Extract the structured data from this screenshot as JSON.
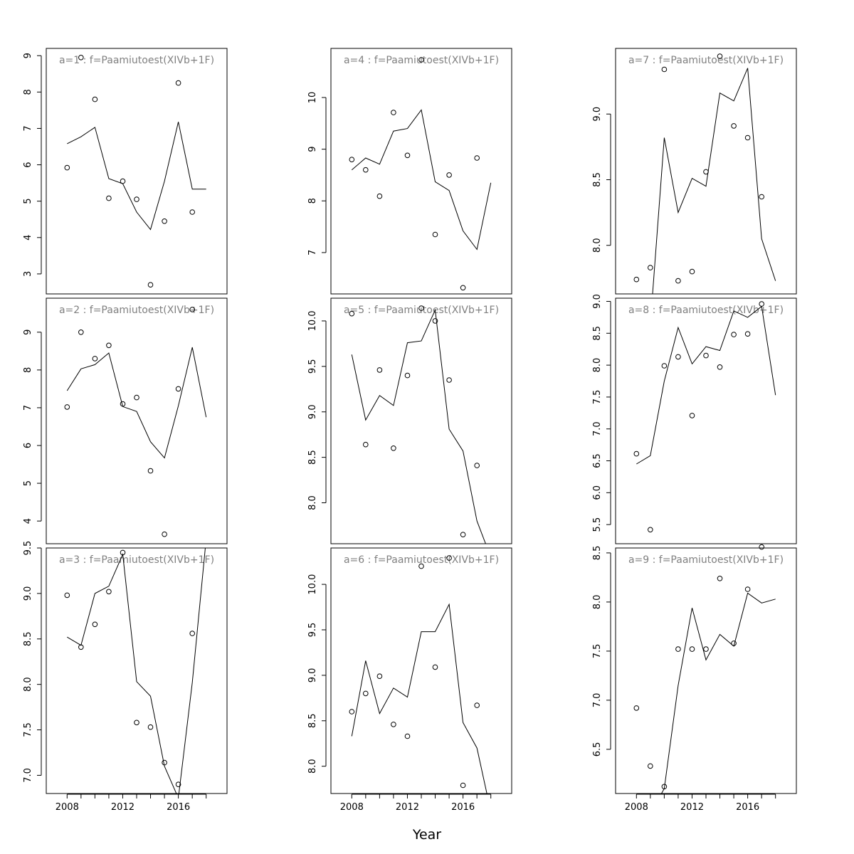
{
  "chart_data": {
    "type": "scatter",
    "xlabel": "Year",
    "x": [
      2008,
      2009,
      2010,
      2011,
      2012,
      2013,
      2014,
      2015,
      2016,
      2017,
      2018
    ],
    "x_ticks": [
      2008,
      2012,
      2016
    ],
    "xlim": [
      2006.5,
      2019.5
    ],
    "series_style": {
      "observed": "points (open circles)",
      "fitted": "line"
    },
    "panels": [
      {
        "title": "a=1 : f=Paamiutoest(XIVb+1F)",
        "ylim": [
          2.45,
          9.2
        ],
        "yticks": [
          3,
          4,
          5,
          6,
          7,
          8,
          9
        ],
        "observed": [
          5.92,
          8.95,
          7.8,
          5.08,
          5.55,
          5.05,
          2.7,
          4.45,
          8.25,
          4.7,
          null
        ],
        "fitted": [
          6.58,
          6.77,
          7.03,
          5.62,
          5.48,
          4.7,
          4.22,
          5.55,
          7.18,
          5.33,
          5.33
        ]
      },
      {
        "title": "a=4 : f=Paamiutoest(XIVb+1F)",
        "ylim": [
          6.2,
          10.95
        ],
        "yticks": [
          7,
          8,
          9,
          10
        ],
        "observed": [
          8.8,
          8.6,
          8.09,
          9.71,
          8.88,
          10.73,
          7.35,
          8.5,
          6.32,
          8.83,
          null
        ],
        "fitted": [
          8.6,
          8.83,
          8.71,
          9.35,
          9.4,
          9.76,
          8.37,
          8.2,
          7.42,
          7.06,
          8.35
        ]
      },
      {
        "title": "a=7 : f=Paamiutoest(XIVb+1F)",
        "ylim": [
          7.63,
          9.5
        ],
        "yticks": [
          8.0,
          8.5,
          9.0
        ],
        "observed": [
          7.74,
          7.83,
          9.34,
          7.73,
          7.8,
          8.56,
          9.44,
          8.91,
          8.82,
          8.37,
          null
        ],
        "fitted": [
          7.55,
          7.4,
          8.82,
          8.25,
          8.51,
          8.45,
          9.16,
          9.1,
          9.35,
          8.05,
          7.73
        ]
      },
      {
        "title": "a=2 : f=Paamiutoest(XIVb+1F)",
        "ylim": [
          3.4,
          9.9
        ],
        "yticks": [
          4,
          5,
          6,
          7,
          8,
          9
        ],
        "observed": [
          7.02,
          9.0,
          8.3,
          8.65,
          7.1,
          7.27,
          5.33,
          3.65,
          7.5,
          9.6,
          null
        ],
        "fitted": [
          7.45,
          8.03,
          8.14,
          8.45,
          7.03,
          6.9,
          6.1,
          5.67,
          7.05,
          8.6,
          6.75
        ]
      },
      {
        "title": "a=5 : f=Paamiutoest(XIVb+1F)",
        "ylim": [
          7.55,
          10.25
        ],
        "yticks": [
          8.0,
          8.5,
          9.0,
          9.5,
          10.0
        ],
        "observed": [
          10.08,
          8.64,
          9.46,
          8.6,
          9.4,
          10.14,
          10.0,
          9.35,
          7.65,
          8.41,
          null
        ],
        "fitted": [
          9.63,
          8.91,
          9.18,
          9.07,
          9.76,
          9.78,
          10.12,
          8.81,
          8.57,
          7.8,
          7.4
        ]
      },
      {
        "title": "a=8 : f=Paamiutoest(XIVb+1F)",
        "ylim": [
          5.2,
          9.05
        ],
        "yticks": [
          5.5,
          6.0,
          6.5,
          7.0,
          7.5,
          8.0,
          8.5,
          9.0
        ],
        "observed": [
          6.61,
          5.42,
          7.99,
          8.13,
          7.21,
          8.15,
          7.97,
          8.48,
          8.49,
          8.96,
          null
        ],
        "fitted": [
          6.45,
          6.58,
          7.75,
          8.59,
          8.02,
          8.29,
          8.23,
          8.85,
          8.75,
          8.92,
          7.53
        ]
      },
      {
        "title": "a=3 : f=Paamiutoest(XIVb+1F)",
        "ylim": [
          6.8,
          9.5
        ],
        "yticks": [
          7.0,
          7.5,
          8.0,
          8.5,
          9.0,
          9.5
        ],
        "observed": [
          8.98,
          8.41,
          8.66,
          9.02,
          9.45,
          7.58,
          7.53,
          7.14,
          6.9,
          8.56,
          null
        ],
        "fitted": [
          8.52,
          8.43,
          9.0,
          9.08,
          9.43,
          8.03,
          7.87,
          7.1,
          6.75,
          8.02,
          9.6
        ]
      },
      {
        "title": "a=6 : f=Paamiutoest(XIVb+1F)",
        "ylim": [
          7.7,
          10.4
        ],
        "yticks": [
          8.0,
          8.5,
          9.0,
          9.5,
          10.0
        ],
        "observed": [
          8.6,
          8.8,
          8.99,
          8.46,
          8.33,
          10.2,
          9.09,
          10.29,
          7.79,
          8.67,
          null
        ],
        "fitted": [
          8.33,
          9.16,
          8.58,
          8.86,
          8.76,
          9.48,
          9.48,
          9.78,
          8.48,
          8.2,
          7.5
        ]
      },
      {
        "title": "a=9 : f=Paamiutoest(XIVb+1F)",
        "ylim": [
          6.05,
          8.55
        ],
        "yticks": [
          6.5,
          7.0,
          7.5,
          8.0,
          8.5
        ],
        "observed": [
          6.92,
          6.33,
          6.12,
          7.52,
          7.52,
          7.52,
          8.24,
          7.58,
          8.13,
          8.56,
          null
        ],
        "fitted": [
          5.8,
          5.85,
          6.1,
          7.15,
          7.94,
          7.41,
          7.67,
          7.55,
          8.09,
          7.99,
          8.03
        ]
      }
    ]
  }
}
